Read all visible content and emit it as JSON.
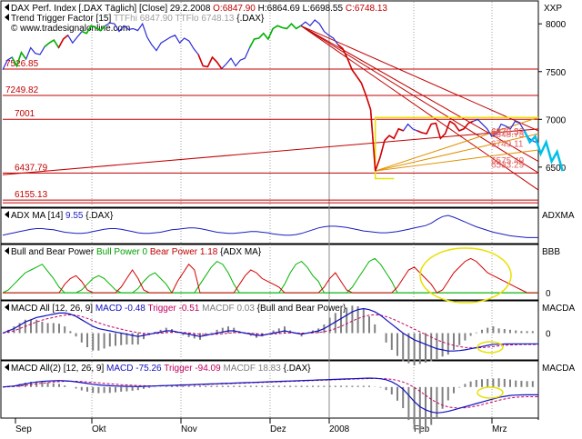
{
  "colors": {
    "price": "#2b2bd8",
    "up": "#00b400",
    "down": "#d40000",
    "hline": "#c00000",
    "trend": "#c00000",
    "yellow": "#e8e000",
    "cyan": "#00c0e8",
    "adx": "#1c1cc0",
    "macd": "#1010c0",
    "trigger": "#c00060",
    "hist": "#808080",
    "zero": "#00a000",
    "grid": "#a0a0a0"
  },
  "panels": [
    {
      "id": "price",
      "header_lines": [
        [
          {
            "text": "DAX Perf. Index [.DAX  Täglich] [Close] 29.2.2008 ",
            "color": "#000000"
          },
          {
            "text": "O:6847.90 ",
            "color": "#c00000"
          },
          {
            "text": "H:6864.69 L:6698.55 ",
            "color": "#000000"
          },
          {
            "text": "C:6748.13",
            "color": "#c00000"
          }
        ],
        [
          {
            "text": "Trend Trigger Factor [15] ",
            "color": "#000000"
          },
          {
            "text": "TTFhi 6847.90 TTFlo 6748.13 ",
            "color": "#a0a0a0"
          },
          {
            "text": "{.DAX}",
            "color": "#000000"
          }
        ],
        [
          {
            "text": "© www.tradesignalonline.com",
            "color": "#000000"
          }
        ]
      ],
      "axis_title": "XXP",
      "ticks": [
        "8000",
        "7500",
        "7000",
        "6500"
      ],
      "level_labels": [
        "7526.85",
        "7249.82",
        "7001",
        "6437.79",
        "6155.13"
      ],
      "marker_labels": [
        "6879.32",
        "6873.5",
        "6848.73",
        "6749.11",
        "6575.49",
        "6533.29"
      ]
    },
    {
      "id": "adx",
      "header": [
        {
          "text": "ADX MA [14] ",
          "color": "#000000"
        },
        {
          "text": "9.55",
          "color": "#1c1cc0"
        },
        {
          "text": " {.DAX}",
          "color": "#000000"
        }
      ],
      "axis_title": "ADXMA",
      "ticks": []
    },
    {
      "id": "bbp",
      "header": [
        {
          "text": "Bull and Bear Power ",
          "color": "#000000"
        },
        {
          "text": "Bull Power 0 ",
          "color": "#00a000"
        },
        {
          "text": "Bear Power 1.18",
          "color": "#c00000"
        },
        {
          "text": " {ADX MA}",
          "color": "#000000"
        }
      ],
      "axis_title": "BBB",
      "ticks": [
        "0"
      ]
    },
    {
      "id": "macd1",
      "header": [
        {
          "text": "MACD All [12, 26, 9] ",
          "color": "#000000"
        },
        {
          "text": "MACD -0.48 ",
          "color": "#1010c0"
        },
        {
          "text": "Trigger -0.51 ",
          "color": "#c00060"
        },
        {
          "text": "MACDF 0.03",
          "color": "#808080"
        },
        {
          "text": " {Bull and Bear Power}",
          "color": "#000000"
        }
      ],
      "axis_title": "MACDA",
      "ticks": [
        "0"
      ]
    },
    {
      "id": "macd2",
      "header": [
        {
          "text": "MACD All(2) [12, 26, 9] ",
          "color": "#000000"
        },
        {
          "text": "MACD -75.26 ",
          "color": "#1010c0"
        },
        {
          "text": "Trigger -94.09 ",
          "color": "#c00060"
        },
        {
          "text": "MACDF 18.83",
          "color": "#808080"
        },
        {
          "text": " {.DAX}",
          "color": "#000000"
        }
      ],
      "axis_title": "MACDA",
      "ticks": []
    }
  ],
  "x_axis": {
    "months": [
      "Sep",
      "Okt",
      "Nov",
      "Dez",
      "2008",
      "Feb",
      "Mrz"
    ]
  },
  "chart_data": {
    "type": "line",
    "title": "DAX Perf. Index [.DAX  Täglich] [Close] 29.2.2008",
    "price": {
      "ylim": [
        6080,
        8240
      ],
      "yticks": [
        8000,
        7500,
        7000,
        6500
      ],
      "close": [
        7520,
        7620,
        7650,
        7560,
        7700,
        7630,
        7750,
        7690,
        7680,
        7760,
        7800,
        7830,
        7750,
        7840,
        7880,
        7800,
        7860,
        7920,
        7900,
        7980,
        7960,
        7930,
        7980,
        8010,
        8000,
        7920,
        7980,
        7940,
        7950,
        7930,
        8000,
        7860,
        7780,
        7720,
        7800,
        7830,
        7860,
        7880,
        7800,
        7850,
        7820,
        7740,
        7680,
        7560,
        7550,
        7650,
        7600,
        7530,
        7580,
        7640,
        7560,
        7620,
        7640,
        7750,
        7840,
        7850,
        7900,
        7840,
        7950,
        7980,
        7960,
        7950,
        8000,
        7950,
        7980,
        8020,
        7980,
        8040,
        8000,
        7920,
        7880,
        7850,
        7780,
        7740,
        7640,
        7520,
        7450,
        7380,
        7250,
        7100,
        6460,
        6600,
        6780,
        6830,
        6800,
        6900,
        6880,
        6950,
        6900,
        6880,
        6860,
        6850,
        6950,
        6960,
        6800,
        6850,
        6980,
        6950,
        6880,
        6900,
        6960,
        6980,
        7000,
        6950,
        6900,
        6820,
        6850,
        6950,
        6930,
        6900,
        6980,
        6960,
        6880,
        6800,
        6770,
        6750
      ],
      "up_segments": [
        [
          2,
          5
        ],
        [
          9,
          12
        ],
        [
          17,
          22
        ],
        [
          53,
          58
        ],
        [
          58,
          64
        ]
      ],
      "down_segments": [
        [
          12,
          14
        ],
        [
          42,
          47
        ],
        [
          72,
          86
        ],
        [
          89,
          96
        ],
        [
          96,
          101
        ]
      ],
      "levels": [
        7526.85,
        7249.82,
        7001,
        6437.79,
        6155.13
      ],
      "marker_values": [
        6879.32,
        6873.5,
        6848.73,
        6749.11,
        6575.49,
        6533.29
      ]
    },
    "adx": {
      "ylim": [
        0,
        50
      ],
      "values": [
        14,
        16,
        18,
        20,
        22,
        24,
        25,
        25,
        24,
        23,
        21,
        19,
        18,
        17,
        17,
        18,
        20,
        22,
        24,
        25,
        25,
        24,
        22,
        20,
        18,
        17,
        17,
        18,
        19,
        21,
        23,
        24,
        25,
        26,
        26,
        25,
        23,
        21,
        19,
        18,
        17,
        17,
        18,
        19,
        20,
        20,
        19,
        18,
        16,
        15,
        14,
        14,
        15,
        17,
        20,
        23,
        26,
        28,
        29,
        29,
        28,
        27,
        25,
        23,
        21,
        20,
        19,
        18,
        18,
        19,
        20,
        22,
        24,
        26,
        28,
        30,
        34,
        40,
        45,
        47,
        44,
        40,
        36,
        32,
        28,
        25,
        22,
        19,
        17,
        15,
        13,
        12,
        11,
        10,
        10,
        10
      ]
    },
    "bbp": {
      "ylim": [
        -5,
        30
      ],
      "bull": [
        0,
        2,
        6,
        10,
        14,
        16,
        18,
        20,
        15,
        10,
        4,
        0,
        0,
        0,
        2,
        6,
        10,
        12,
        10,
        6,
        2,
        0,
        0,
        0,
        3,
        8,
        12,
        14,
        10,
        6,
        0,
        0,
        0,
        0,
        0,
        6,
        12,
        18,
        22,
        20,
        14,
        6,
        0,
        0,
        0,
        0,
        0,
        0,
        0,
        0,
        6,
        14,
        20,
        22,
        18,
        12,
        8,
        0,
        0,
        0,
        0,
        0,
        4,
        10,
        16,
        22,
        24,
        20,
        14,
        8,
        0,
        0,
        0,
        0,
        0,
        0,
        0,
        0,
        0,
        0,
        0,
        0,
        0,
        0,
        0,
        0,
        0,
        0,
        0,
        0,
        0,
        0,
        0,
        0,
        0,
        0
      ],
      "bear": [
        0,
        0,
        0,
        0,
        0,
        0,
        0,
        0,
        0,
        0,
        0,
        6,
        10,
        12,
        8,
        2,
        0,
        0,
        0,
        0,
        0,
        4,
        10,
        16,
        10,
        2,
        0,
        0,
        0,
        0,
        0,
        8,
        14,
        20,
        16,
        0,
        0,
        0,
        0,
        0,
        0,
        0,
        6,
        12,
        16,
        14,
        10,
        8,
        6,
        4,
        0,
        0,
        0,
        0,
        0,
        0,
        0,
        4,
        10,
        14,
        8,
        2,
        0,
        0,
        0,
        0,
        0,
        0,
        0,
        0,
        4,
        10,
        16,
        18,
        14,
        10,
        6,
        0,
        2,
        8,
        14,
        18,
        22,
        24,
        22,
        18,
        14,
        12,
        10,
        8,
        6,
        4,
        2,
        0,
        0,
        0
      ]
    },
    "macd1": {
      "ylim": [
        -1.2,
        1.2
      ],
      "macd": [
        0,
        0.1,
        0.2,
        0.35,
        0.5,
        0.6,
        0.7,
        0.75,
        0.8,
        0.85,
        0.9,
        0.9,
        0.85,
        0.75,
        0.6,
        0.45,
        0.3,
        0.2,
        0.15,
        0.1,
        0.05,
        0,
        -0.05,
        -0.1,
        -0.15,
        -0.1,
        -0.05,
        0,
        0.05,
        0.1,
        0.1,
        0.05,
        0,
        -0.05,
        -0.1,
        -0.15,
        -0.1,
        -0.05,
        0,
        0.05,
        0.1,
        0.1,
        0.05,
        0,
        -0.05,
        -0.1,
        -0.1,
        -0.05,
        0,
        0.05,
        0.1,
        0.05,
        0,
        -0.05,
        0,
        0.05,
        0.1,
        0.2,
        0.35,
        0.5,
        0.65,
        0.8,
        0.95,
        1.05,
        1.1,
        1.05,
        0.95,
        0.8,
        0.6,
        0.4,
        0.2,
        0,
        -0.15,
        -0.3,
        -0.4,
        -0.5,
        -0.6,
        -0.7,
        -0.75,
        -0.8,
        -0.8,
        -0.78,
        -0.75,
        -0.7,
        -0.65,
        -0.6,
        -0.55,
        -0.5,
        -0.5,
        -0.49,
        -0.48,
        -0.48,
        -0.48,
        -0.48,
        -0.48,
        -0.48
      ],
      "trigger": [
        0,
        0.05,
        0.1,
        0.2,
        0.3,
        0.4,
        0.5,
        0.58,
        0.65,
        0.7,
        0.76,
        0.8,
        0.82,
        0.8,
        0.74,
        0.66,
        0.56,
        0.46,
        0.38,
        0.3,
        0.24,
        0.18,
        0.12,
        0.07,
        0.02,
        -0.01,
        -0.02,
        -0.02,
        0,
        0.02,
        0.04,
        0.04,
        0.03,
        0.01,
        -0.02,
        -0.05,
        -0.06,
        -0.06,
        -0.05,
        -0.03,
        0,
        0.02,
        0.02,
        0.01,
        -0.01,
        -0.03,
        -0.05,
        -0.05,
        -0.04,
        -0.02,
        0,
        0.01,
        0.01,
        0,
        0,
        0.01,
        0.03,
        0.07,
        0.12,
        0.2,
        0.3,
        0.42,
        0.54,
        0.65,
        0.74,
        0.8,
        0.82,
        0.8,
        0.74,
        0.65,
        0.54,
        0.42,
        0.3,
        0.18,
        0.06,
        -0.06,
        -0.18,
        -0.3,
        -0.4,
        -0.48,
        -0.55,
        -0.6,
        -0.64,
        -0.66,
        -0.66,
        -0.65,
        -0.63,
        -0.6,
        -0.57,
        -0.55,
        -0.53,
        -0.52,
        -0.51,
        -0.51,
        -0.51,
        -0.51
      ]
    },
    "macd2": {
      "ylim": [
        -300,
        200
      ],
      "macd": [
        0,
        5,
        10,
        20,
        30,
        40,
        48,
        54,
        58,
        60,
        62,
        60,
        56,
        50,
        42,
        34,
        26,
        20,
        16,
        12,
        10,
        8,
        6,
        5,
        4,
        6,
        8,
        10,
        12,
        14,
        16,
        18,
        20,
        22,
        24,
        26,
        28,
        30,
        32,
        34,
        36,
        38,
        40,
        42,
        44,
        46,
        48,
        50,
        52,
        54,
        56,
        58,
        60,
        62,
        64,
        66,
        68,
        70,
        72,
        74,
        76,
        78,
        80,
        82,
        84,
        86,
        84,
        80,
        70,
        50,
        20,
        -20,
        -80,
        -140,
        -190,
        -220,
        -240,
        -250,
        -245,
        -235,
        -220,
        -205,
        -190,
        -175,
        -160,
        -145,
        -130,
        -115,
        -100,
        -90,
        -82,
        -78,
        -76,
        -75,
        -75,
        -75
      ],
      "trigger": [
        0,
        2,
        5,
        10,
        16,
        23,
        30,
        37,
        43,
        48,
        52,
        55,
        56,
        55,
        53,
        49,
        45,
        40,
        35,
        31,
        27,
        23,
        20,
        17,
        14,
        12,
        11,
        11,
        11,
        12,
        13,
        14,
        16,
        18,
        20,
        22,
        24,
        26,
        28,
        30,
        32,
        34,
        36,
        38,
        40,
        42,
        44,
        46,
        48,
        50,
        52,
        54,
        56,
        58,
        60,
        62,
        64,
        66,
        68,
        70,
        72,
        74,
        76,
        78,
        80,
        82,
        83,
        82,
        80,
        74,
        64,
        48,
        26,
        -4,
        -40,
        -80,
        -118,
        -150,
        -175,
        -192,
        -200,
        -203,
        -200,
        -193,
        -183,
        -170,
        -156,
        -142,
        -128,
        -116,
        -106,
        -99,
        -96,
        -94,
        -94,
        -94
      ]
    },
    "annotations": [
      "6879.32",
      "6873.5",
      "6848.73",
      "6749.11",
      "6575.49",
      "6533.29"
    ]
  }
}
